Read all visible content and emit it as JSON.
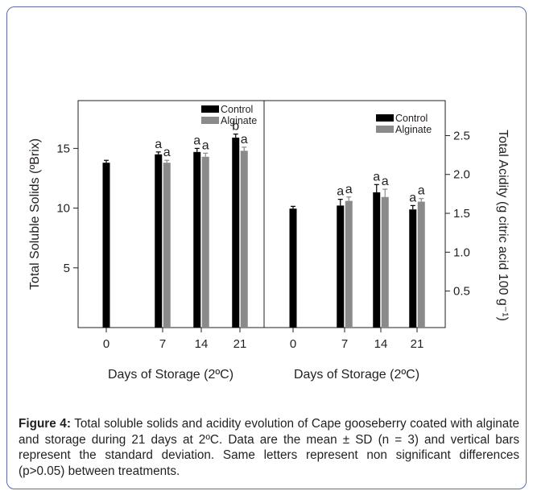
{
  "chart_data": [
    {
      "type": "bar",
      "categories": [
        "0",
        "7",
        "14",
        "21"
      ],
      "xlabel": "Days of Storage (2ºC)",
      "ylabel": "Total Soluble Solids (ºBrix)",
      "ylim": [
        0,
        19
      ],
      "yticks": [
        "5",
        "10",
        "15"
      ],
      "legend": "top-right",
      "series": [
        {
          "name": "Control",
          "color": "#000000",
          "values": [
            13.8,
            14.5,
            14.7,
            15.9
          ],
          "errors": [
            0.2,
            0.2,
            0.3,
            0.3
          ]
        },
        {
          "name": "Alginate",
          "color": "#8a8a8a",
          "values": [
            null,
            13.8,
            14.3,
            14.8
          ],
          "errors": [
            null,
            0.2,
            0.3,
            0.3
          ]
        }
      ],
      "letters": [
        {
          "category": "7",
          "control": "a",
          "alginate": "a"
        },
        {
          "category": "14",
          "control": "a",
          "alginate": "a"
        },
        {
          "category": "21",
          "control": "b",
          "alginate": "a"
        }
      ]
    },
    {
      "type": "bar",
      "categories": [
        "0",
        "7",
        "14",
        "21"
      ],
      "xlabel": "Days of Storage (2ºC)",
      "ylabel": "Total Acidity (g citric acid 100 g⁻¹)",
      "ylim": [
        0.03,
        2.95
      ],
      "yticks": [
        "0.5",
        "1.0",
        "1.5",
        "2.0",
        "2.5"
      ],
      "legend": "top-right",
      "series": [
        {
          "name": "Control",
          "color": "#000000",
          "values": [
            1.56,
            1.6,
            1.77,
            1.55
          ],
          "errors": [
            0.03,
            0.08,
            0.1,
            0.05
          ]
        },
        {
          "name": "Alginate",
          "color": "#8a8a8a",
          "values": [
            null,
            1.66,
            1.71,
            1.65
          ],
          "errors": [
            null,
            0.05,
            0.1,
            0.04
          ]
        }
      ],
      "letters": [
        {
          "category": "7",
          "control": "a",
          "alginate": "a"
        },
        {
          "category": "14",
          "control": "a",
          "alginate": "a"
        },
        {
          "category": "21",
          "control": "a",
          "alginate": "a"
        }
      ]
    }
  ],
  "caption": {
    "label": "Figure 4:",
    "text": " Total soluble solids and acidity evolution of Cape gooseberry coated with alginate and storage during 21 days at 2ºC. Data are the mean ± SD (n = 3) and vertical bars represent the standard deviation. Same letters represent non significant differences (p>0.05) between treatments."
  }
}
